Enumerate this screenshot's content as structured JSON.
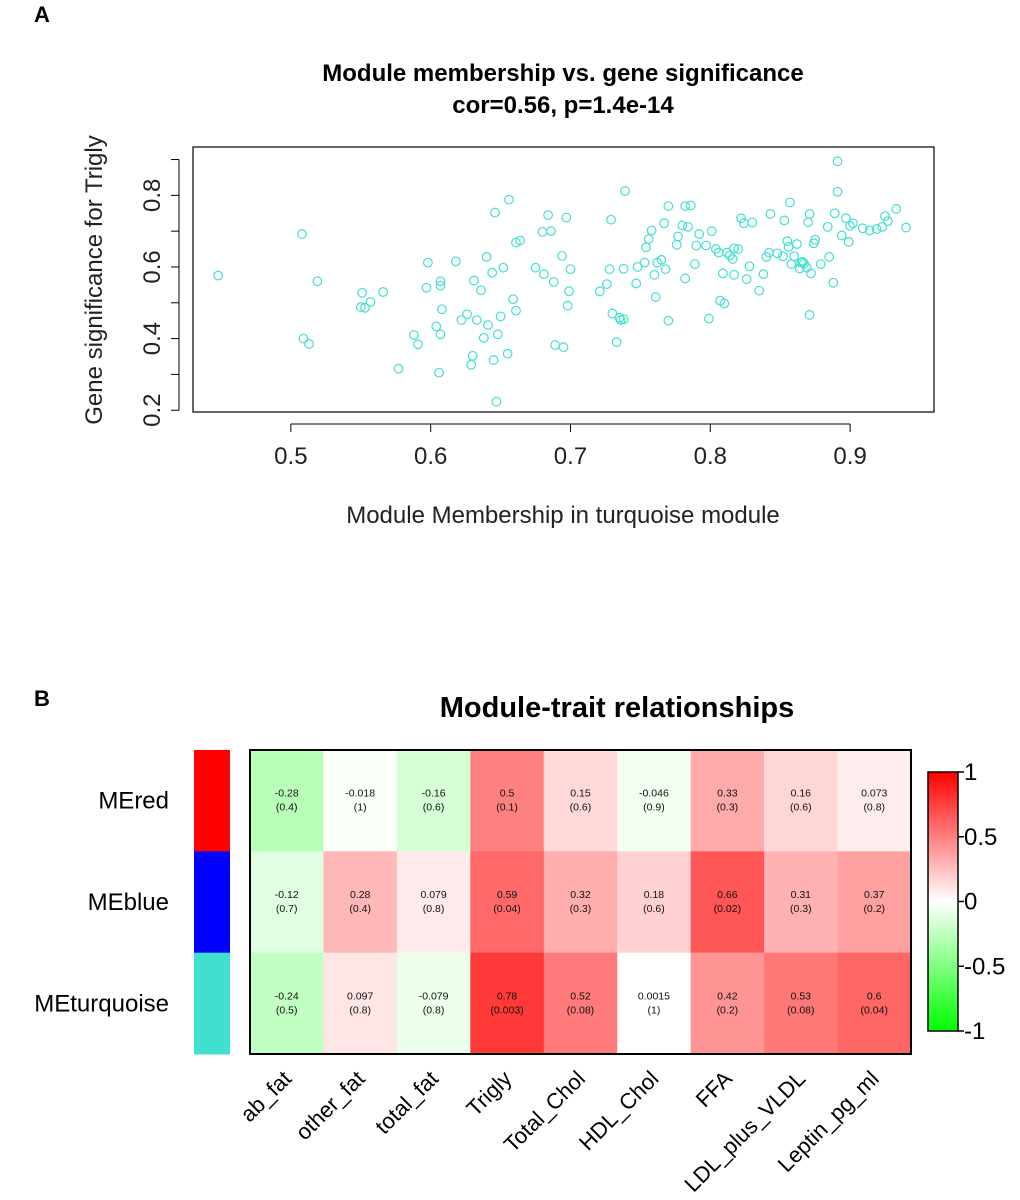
{
  "panels": {
    "a_label": "A",
    "b_label": "B"
  },
  "chart_data": [
    {
      "type": "scatter",
      "title": "Module membership vs. gene significance",
      "subtitle": "cor=0.56, p=1.4e-14",
      "xlabel": "Module Membership in turquoise module",
      "ylabel": "Gene significance for Trigly",
      "xlim": [
        0.43,
        0.96
      ],
      "ylim": [
        0.195,
        0.935
      ],
      "xticks": [
        0.5,
        0.6,
        0.7,
        0.8,
        0.9
      ],
      "xtick_labels": [
        "0.5",
        "0.6",
        "0.7",
        "0.8",
        "0.9"
      ],
      "yticks": [
        0.2,
        0.4,
        0.6,
        0.8
      ],
      "ytick_labels": [
        "0.2",
        "0.4",
        "0.6",
        "0.8"
      ],
      "ytick_minor": [
        0.3,
        0.5,
        0.7,
        0.9
      ],
      "marker_color": "#40E0D0",
      "points": [
        [
          0.448,
          0.576
        ],
        [
          0.508,
          0.692
        ],
        [
          0.509,
          0.4
        ],
        [
          0.513,
          0.385
        ],
        [
          0.519,
          0.56
        ],
        [
          0.55,
          0.488
        ],
        [
          0.551,
          0.528
        ],
        [
          0.553,
          0.486
        ],
        [
          0.557,
          0.502
        ],
        [
          0.566,
          0.53
        ],
        [
          0.577,
          0.316
        ],
        [
          0.588,
          0.41
        ],
        [
          0.591,
          0.384
        ],
        [
          0.597,
          0.542
        ],
        [
          0.598,
          0.612
        ],
        [
          0.604,
          0.434
        ],
        [
          0.606,
          0.305
        ],
        [
          0.607,
          0.412
        ],
        [
          0.607,
          0.56
        ],
        [
          0.607,
          0.548
        ],
        [
          0.608,
          0.482
        ],
        [
          0.618,
          0.616
        ],
        [
          0.622,
          0.452
        ],
        [
          0.626,
          0.468
        ],
        [
          0.629,
          0.327
        ],
        [
          0.63,
          0.352
        ],
        [
          0.631,
          0.562
        ],
        [
          0.633,
          0.452
        ],
        [
          0.636,
          0.535
        ],
        [
          0.638,
          0.402
        ],
        [
          0.64,
          0.628
        ],
        [
          0.641,
          0.438
        ],
        [
          0.644,
          0.584
        ],
        [
          0.645,
          0.34
        ],
        [
          0.646,
          0.752
        ],
        [
          0.648,
          0.412
        ],
        [
          0.647,
          0.224
        ],
        [
          0.65,
          0.462
        ],
        [
          0.652,
          0.598
        ],
        [
          0.655,
          0.358
        ],
        [
          0.656,
          0.788
        ],
        [
          0.659,
          0.51
        ],
        [
          0.661,
          0.668
        ],
        [
          0.661,
          0.478
        ],
        [
          0.664,
          0.674
        ],
        [
          0.675,
          0.598
        ],
        [
          0.68,
          0.698
        ],
        [
          0.681,
          0.58
        ],
        [
          0.684,
          0.745
        ],
        [
          0.686,
          0.7
        ],
        [
          0.688,
          0.558
        ],
        [
          0.689,
          0.382
        ],
        [
          0.694,
          0.631
        ],
        [
          0.695,
          0.376
        ],
        [
          0.697,
          0.738
        ],
        [
          0.698,
          0.492
        ],
        [
          0.699,
          0.532
        ],
        [
          0.7,
          0.594
        ],
        [
          0.721,
          0.532
        ],
        [
          0.726,
          0.552
        ],
        [
          0.728,
          0.594
        ],
        [
          0.729,
          0.732
        ],
        [
          0.73,
          0.47
        ],
        [
          0.733,
          0.39
        ],
        [
          0.735,
          0.458
        ],
        [
          0.736,
          0.452
        ],
        [
          0.738,
          0.454
        ],
        [
          0.738,
          0.595
        ],
        [
          0.739,
          0.812
        ],
        [
          0.747,
          0.554
        ],
        [
          0.748,
          0.6
        ],
        [
          0.753,
          0.612
        ],
        [
          0.754,
          0.655
        ],
        [
          0.756,
          0.678
        ],
        [
          0.758,
          0.702
        ],
        [
          0.76,
          0.578
        ],
        [
          0.761,
          0.516
        ],
        [
          0.762,
          0.612
        ],
        [
          0.765,
          0.62
        ],
        [
          0.767,
          0.722
        ],
        [
          0.768,
          0.594
        ],
        [
          0.77,
          0.77
        ],
        [
          0.77,
          0.45
        ],
        [
          0.776,
          0.662
        ],
        [
          0.777,
          0.685
        ],
        [
          0.78,
          0.716
        ],
        [
          0.782,
          0.77
        ],
        [
          0.782,
          0.568
        ],
        [
          0.784,
          0.712
        ],
        [
          0.786,
          0.772
        ],
        [
          0.789,
          0.608
        ],
        [
          0.79,
          0.66
        ],
        [
          0.792,
          0.692
        ],
        [
          0.797,
          0.66
        ],
        [
          0.799,
          0.456
        ],
        [
          0.801,
          0.7
        ],
        [
          0.804,
          0.65
        ],
        [
          0.806,
          0.64
        ],
        [
          0.807,
          0.506
        ],
        [
          0.809,
          0.582
        ],
        [
          0.81,
          0.498
        ],
        [
          0.812,
          0.64
        ],
        [
          0.814,
          0.632
        ],
        [
          0.816,
          0.622
        ],
        [
          0.817,
          0.652
        ],
        [
          0.817,
          0.578
        ],
        [
          0.82,
          0.65
        ],
        [
          0.822,
          0.736
        ],
        [
          0.824,
          0.722
        ],
        [
          0.826,
          0.566
        ],
        [
          0.828,
          0.602
        ],
        [
          0.83,
          0.724
        ],
        [
          0.835,
          0.534
        ],
        [
          0.838,
          0.58
        ],
        [
          0.84,
          0.628
        ],
        [
          0.842,
          0.64
        ],
        [
          0.843,
          0.748
        ],
        [
          0.848,
          0.638
        ],
        [
          0.852,
          0.63
        ],
        [
          0.853,
          0.73
        ],
        [
          0.855,
          0.672
        ],
        [
          0.856,
          0.656
        ],
        [
          0.857,
          0.78
        ],
        [
          0.858,
          0.608
        ],
        [
          0.86,
          0.63
        ],
        [
          0.862,
          0.664
        ],
        [
          0.864,
          0.596
        ],
        [
          0.865,
          0.612
        ],
        [
          0.866,
          0.614
        ],
        [
          0.867,
          0.61
        ],
        [
          0.869,
          0.598
        ],
        [
          0.87,
          0.725
        ],
        [
          0.871,
          0.748
        ],
        [
          0.871,
          0.466
        ],
        [
          0.872,
          0.582
        ],
        [
          0.874,
          0.666
        ],
        [
          0.875,
          0.676
        ],
        [
          0.879,
          0.608
        ],
        [
          0.884,
          0.712
        ],
        [
          0.885,
          0.628
        ],
        [
          0.888,
          0.556
        ],
        [
          0.889,
          0.75
        ],
        [
          0.891,
          0.81
        ],
        [
          0.891,
          0.895
        ],
        [
          0.894,
          0.688
        ],
        [
          0.897,
          0.736
        ],
        [
          0.899,
          0.67
        ],
        [
          0.9,
          0.715
        ],
        [
          0.902,
          0.722
        ],
        [
          0.909,
          0.708
        ],
        [
          0.914,
          0.702
        ],
        [
          0.919,
          0.706
        ],
        [
          0.923,
          0.712
        ],
        [
          0.925,
          0.742
        ],
        [
          0.927,
          0.728
        ],
        [
          0.933,
          0.762
        ],
        [
          0.94,
          0.71
        ]
      ]
    },
    {
      "type": "heatmap",
      "title": "Module-trait relationships",
      "rows": [
        "MEred",
        "MEblue",
        "MEturquoise"
      ],
      "row_colors": [
        "#FF0000",
        "#0000FF",
        "#40E0D0"
      ],
      "columns": [
        "ab_fat",
        "other_fat",
        "total_fat",
        "Trigly",
        "Total_Chol",
        "HDL_Chol",
        "FFA",
        "LDL_plus_VLDL",
        "Leptin_pg_ml"
      ],
      "values": [
        [
          -0.28,
          -0.018,
          -0.16,
          0.5,
          0.15,
          -0.046,
          0.33,
          0.16,
          0.073
        ],
        [
          -0.12,
          0.28,
          0.079,
          0.59,
          0.32,
          0.18,
          0.66,
          0.31,
          0.37
        ],
        [
          -0.24,
          0.097,
          -0.079,
          0.78,
          0.52,
          0.0015,
          0.42,
          0.53,
          0.6
        ]
      ],
      "cell_labels": [
        [
          "-0.28",
          "-0.018",
          "-0.16",
          "0.5",
          "0.15",
          "-0.046",
          "0.33",
          "0.16",
          "0.073"
        ],
        [
          "-0.12",
          "0.28",
          "0.079",
          "0.59",
          "0.32",
          "0.18",
          "0.66",
          "0.31",
          "0.37"
        ],
        [
          "-0.24",
          "0.097",
          "-0.079",
          "0.78",
          "0.52",
          "0.0015",
          "0.42",
          "0.53",
          "0.6"
        ]
      ],
      "pvalue_labels": [
        [
          "(0.4)",
          "(1)",
          "(0.6)",
          "(0.1)",
          "(0.6)",
          "(0.9)",
          "(0.3)",
          "(0.6)",
          "(0.8)"
        ],
        [
          "(0.7)",
          "(0.4)",
          "(0.8)",
          "(0.04)",
          "(0.3)",
          "(0.6)",
          "(0.02)",
          "(0.3)",
          "(0.2)"
        ],
        [
          "(0.5)",
          "(0.8)",
          "(0.8)",
          "(0.003)",
          "(0.08)",
          "(1)",
          "(0.2)",
          "(0.08)",
          "(0.04)"
        ]
      ],
      "color_scale": {
        "low": "#00FF00",
        "mid": "#FFFFFF",
        "high": "#FF0000",
        "range": [
          -1,
          1
        ]
      },
      "legend_ticks": [
        1,
        0.5,
        0,
        -0.5,
        -1
      ],
      "legend_tick_labels": [
        "1",
        "0.5",
        "0",
        "-0.5",
        "-1"
      ]
    }
  ]
}
